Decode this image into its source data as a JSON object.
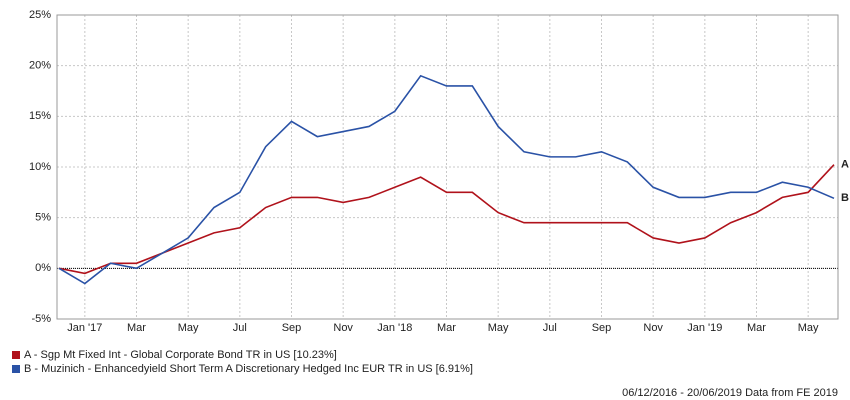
{
  "chart_data": {
    "type": "line",
    "categories": [
      null,
      "Jan '17",
      null,
      "Mar",
      null,
      "May",
      null,
      "Jul",
      null,
      "Sep",
      null,
      "Nov",
      null,
      "Jan '18",
      null,
      "Mar",
      null,
      "May",
      null,
      "Jul",
      null,
      "Sep",
      null,
      "Nov",
      null,
      "Jan '19",
      null,
      "Mar",
      null,
      "May",
      null
    ],
    "series": [
      {
        "name": "A - Sgp Mt Fixed Int - Global Corporate Bond TR in US [10.23%]",
        "end_label": "A",
        "color": "#b0121b",
        "values": [
          0,
          -0.5,
          0.5,
          0.5,
          1.5,
          2.5,
          3.5,
          4,
          6,
          7,
          7,
          6.5,
          7,
          8,
          9,
          7.5,
          7.5,
          5.5,
          4.5,
          4.5,
          4.5,
          4.5,
          4.5,
          3,
          2.5,
          3,
          4.5,
          5.5,
          7,
          7.5,
          10.23
        ]
      },
      {
        "name": "B - Muzinich - Enhancedyield Short Term A Discretionary Hedged Inc EUR TR in US [6.91%]",
        "end_label": "B",
        "color": "#2a52a6",
        "values": [
          0,
          -1.5,
          0.5,
          0,
          1.5,
          3,
          6,
          7.5,
          12,
          14.5,
          13,
          13.5,
          14,
          15.5,
          19,
          18,
          18,
          14,
          11.5,
          11,
          11,
          11.5,
          10.5,
          8,
          7,
          7,
          7.5,
          7.5,
          8.5,
          8,
          6.91
        ]
      }
    ],
    "ylim": [
      -5,
      25
    ],
    "yticks": [
      {
        "value": -5,
        "label": "-5%"
      },
      {
        "value": 0,
        "label": "0%"
      },
      {
        "value": 5,
        "label": "5%"
      },
      {
        "value": 10,
        "label": "10%"
      },
      {
        "value": 15,
        "label": "15%"
      },
      {
        "value": 20,
        "label": "20%"
      },
      {
        "value": 25,
        "label": "25%"
      }
    ],
    "grid": true,
    "footer": "06/12/2016 - 20/06/2019 Data from FE 2019"
  }
}
